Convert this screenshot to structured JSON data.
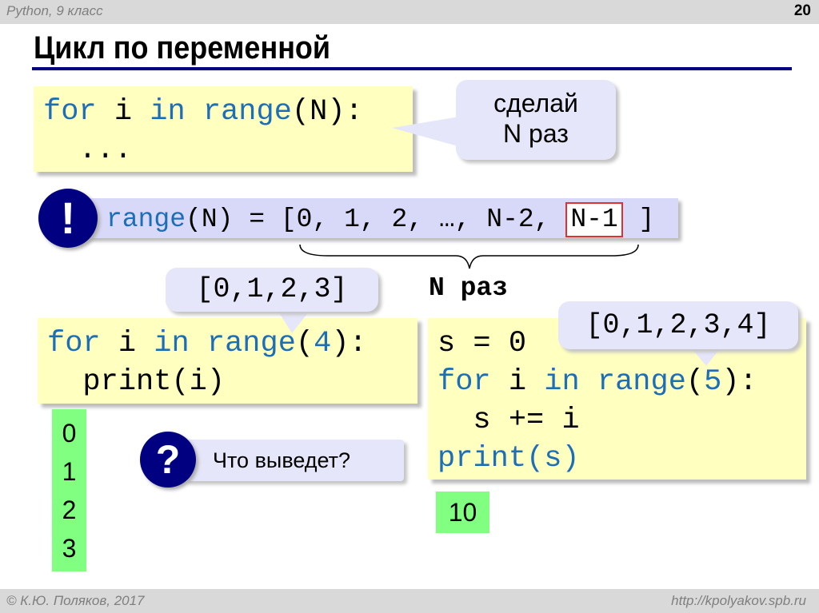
{
  "header": {
    "course": "Python, 9 класс",
    "page_number": "20"
  },
  "title": "Цикл по переменной",
  "code1": {
    "kw_for": "for",
    "var": " i ",
    "kw_in": "in",
    "kw_range": " range",
    "args": "(N):",
    "body": "  ..."
  },
  "callout1": {
    "line1": "сделай",
    "line2": "N раз"
  },
  "range_note": {
    "icon": "exclamation-icon",
    "mark": "!",
    "func": "range",
    "expr": "(N) = [0, 1, 2, …, N-2, ",
    "last": "N-1",
    "close": " ]"
  },
  "brace_label": "N раз",
  "list4": "[0,1,2,3]",
  "code2": {
    "kw_for": "for",
    "var": " i ",
    "kw_in": "in",
    "kw_range": " range",
    "open": "(",
    "num": "4",
    "close": "):",
    "body": "  print(i)"
  },
  "output2": [
    "0",
    "1",
    "2",
    "3"
  ],
  "question": {
    "icon": "question-icon",
    "mark": "?",
    "text": "Что выведет?"
  },
  "list5": "[0,1,2,3,4]",
  "code3": {
    "line1": "s = 0",
    "kw_for": "for",
    "var": " i ",
    "kw_in": "in",
    "kw_range": " range",
    "open": "(",
    "num": "5",
    "close": "):",
    "line3": "  s += i",
    "line4": "print(s)"
  },
  "output3": "10",
  "footer": {
    "copyright": "© К.Ю. Поляков, 2017",
    "url": "http://kpolyakov.spb.ru"
  },
  "colors": {
    "accent": "#000080",
    "keyword": "#1c6fb7",
    "code_bg": "#ffffc0",
    "bubble_bg": "#e6e6fa",
    "output_bg": "#80ff80",
    "highlight": "#e03030"
  }
}
